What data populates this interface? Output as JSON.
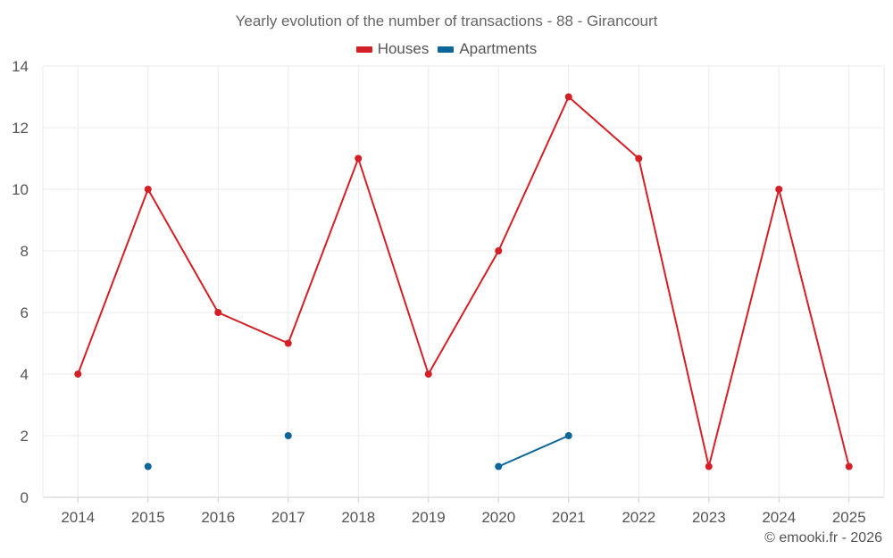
{
  "chart_data": {
    "type": "line",
    "title": "Yearly evolution of the number of transactions - 88 - Girancourt",
    "xlabel": "",
    "ylabel": "",
    "categories": [
      "2014",
      "2015",
      "2016",
      "2017",
      "2018",
      "2019",
      "2020",
      "2021",
      "2022",
      "2023",
      "2024",
      "2025"
    ],
    "ylim": [
      0,
      14
    ],
    "yticks": [
      0,
      2,
      4,
      6,
      8,
      10,
      12,
      14
    ],
    "grid": true,
    "legend_position": "top-center",
    "series": [
      {
        "name": "Houses",
        "color": "#d32027",
        "values": [
          4,
          10,
          6,
          5,
          11,
          4,
          8,
          13,
          11,
          1,
          10,
          1
        ]
      },
      {
        "name": "Apartments",
        "color": "#0d6699",
        "values": [
          null,
          1,
          null,
          2,
          null,
          null,
          1,
          2,
          null,
          null,
          null,
          null
        ]
      }
    ]
  },
  "credit": "© emooki.fr - 2026"
}
